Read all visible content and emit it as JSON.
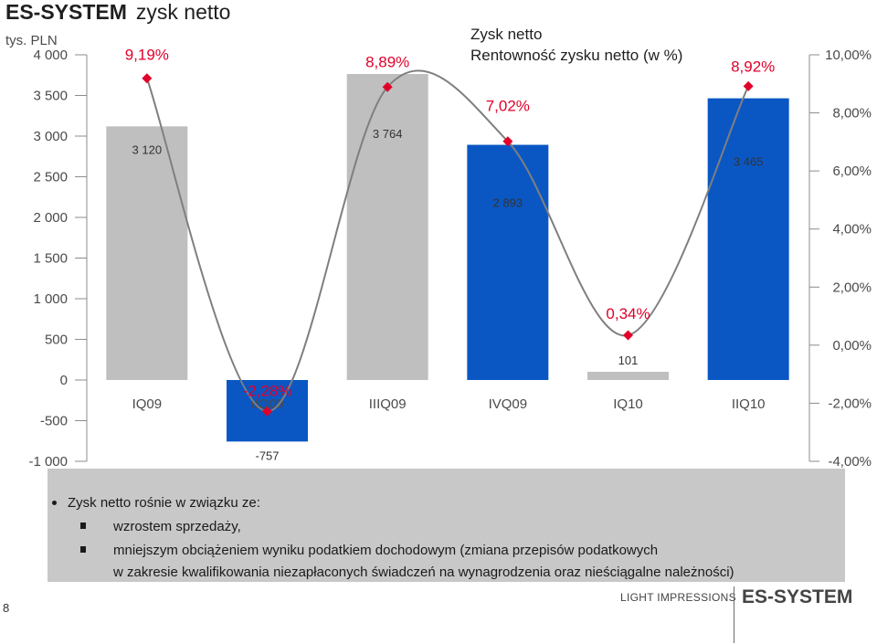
{
  "slide": {
    "title_bold": "ES-SYSTEM",
    "title_rest": "zysk netto",
    "page_number": "8",
    "footer_tag": "LIGHT IMPRESSIONS",
    "footer_brand": "ES-SYSTEM"
  },
  "chart_data": {
    "type": "bar",
    "categories": [
      "IQ09",
      "IIQ09",
      "IIIQ09",
      "IVQ09",
      "IQ10",
      "IIQ10"
    ],
    "series": [
      {
        "name": "Zysk netto",
        "axis": "left",
        "values": [
          3120,
          -757,
          3764,
          2893,
          101,
          3465
        ],
        "value_labels": [
          "3 120",
          "-757",
          "3 764",
          "2 893",
          "101",
          "3 465"
        ],
        "colors": [
          "#bfbfbf",
          "#0a57c4",
          "#bfbfbf",
          "#0a57c4",
          "#bfbfbf",
          "#0a57c4"
        ]
      },
      {
        "name": "Rentowność zysku netto (w %)",
        "axis": "right",
        "type": "line",
        "values": [
          9.19,
          -2.28,
          8.89,
          7.02,
          0.34,
          8.92
        ],
        "value_labels": [
          "9,19%",
          "-2,28%",
          "8,89%",
          "7,02%",
          "0,34%",
          "8,92%"
        ],
        "color": "#7f7f7f",
        "marker_color": "#e0002a"
      }
    ],
    "left_axis": {
      "unit_label": "tys. PLN",
      "ylim": [
        -1000,
        4000
      ],
      "ticks": [
        -1000,
        -500,
        0,
        500,
        1000,
        1500,
        2000,
        2500,
        3000,
        3500,
        4000
      ],
      "tick_labels": [
        "-1 000",
        "-500",
        "0",
        "500",
        "1 000",
        "1 500",
        "2 000",
        "2 500",
        "3 000",
        "3 500",
        "4 000"
      ]
    },
    "right_axis": {
      "ylim": [
        -4,
        10
      ],
      "ticks": [
        -4,
        -2,
        0,
        2,
        4,
        6,
        8,
        10
      ],
      "tick_labels": [
        "-4,00%",
        "-2,00%",
        "0,00%",
        "2,00%",
        "4,00%",
        "6,00%",
        "8,00%",
        "10,00%"
      ]
    },
    "grid": false,
    "legend_position": "top-center"
  },
  "notes": {
    "bullet": "Zysk netto rośnie w związku ze:",
    "items": [
      "wzrostem sprzedaży,",
      "mniejszym obciążeniem wyniku podatkiem dochodowym (zmiana przepisów podatkowych",
      "w zakresie kwalifikowania niezapłaconych świadczeń na wynagrodzenia oraz nieściągalne należności)"
    ]
  }
}
